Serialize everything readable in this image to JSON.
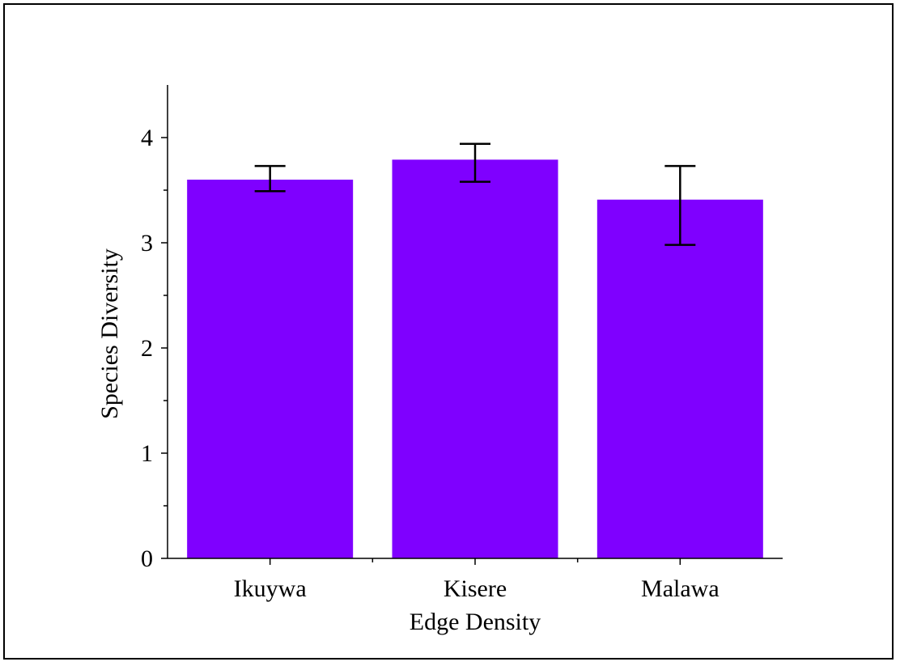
{
  "chart_data": {
    "type": "bar",
    "categories": [
      "Ikuywa",
      "Kisere",
      "Malawa"
    ],
    "values": [
      3.6,
      3.79,
      3.41
    ],
    "error_upper": [
      3.73,
      3.94,
      3.73
    ],
    "error_lower": [
      3.49,
      3.58,
      2.98
    ],
    "xlabel": "Edge Density",
    "ylabel": "Species Diversity",
    "ylim": [
      0,
      4.5
    ],
    "yticks": [
      0,
      1,
      2,
      3,
      4
    ],
    "ytick_labels": [
      "0",
      "1",
      "2",
      "3",
      "4"
    ],
    "bar_color": "#7f00ff",
    "grid": false,
    "legend": "none"
  }
}
